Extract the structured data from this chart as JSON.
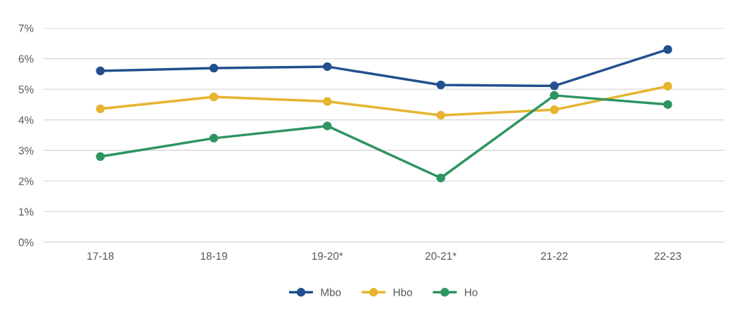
{
  "chart_data": {
    "type": "line",
    "categories": [
      "17-18",
      "18-19",
      "19-20*",
      "20-21*",
      "21-22",
      "22-23"
    ],
    "series": [
      {
        "name": "Mbo",
        "color": "#22508f",
        "values": [
          5.6,
          5.69,
          5.74,
          5.14,
          5.11,
          6.3
        ]
      },
      {
        "name": "Hbo",
        "color": "#e6b430",
        "values": [
          4.36,
          4.75,
          4.6,
          4.15,
          4.33,
          5.1
        ]
      },
      {
        "name": "Ho",
        "color": "#2e9462",
        "values": [
          2.8,
          3.4,
          3.8,
          2.1,
          4.8,
          4.5
        ]
      }
    ],
    "ylim": [
      0,
      7
    ],
    "yticks": [
      {
        "value": 0,
        "label": "0%"
      },
      {
        "value": 1,
        "label": "1%"
      },
      {
        "value": 2,
        "label": "2%"
      },
      {
        "value": 3,
        "label": "3%"
      },
      {
        "value": 4,
        "label": "4%"
      },
      {
        "value": 5,
        "label": "5%"
      },
      {
        "value": 6,
        "label": "6%"
      },
      {
        "value": 7,
        "label": "7%"
      }
    ],
    "grid": "y",
    "legend": "bottom",
    "marker": "circle",
    "line_style": "solid"
  }
}
